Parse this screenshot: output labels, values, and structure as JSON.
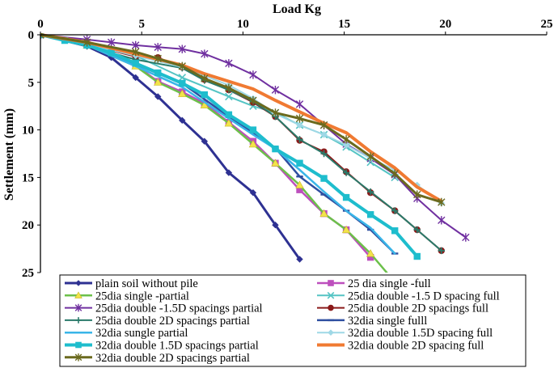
{
  "chart_data": {
    "type": "line",
    "title": "",
    "xlabel": "Load Kg",
    "ylabel": "Settlement (mm)",
    "xlim": [
      0,
      25
    ],
    "ylim": [
      0,
      25
    ],
    "y_inverted": true,
    "x_axis_position": "top",
    "grid": false,
    "legend_placement": "bottom",
    "x_ticks": [
      "0",
      "5",
      "10",
      "15",
      "20",
      "25"
    ],
    "y_ticks": [
      "0",
      "5",
      "10",
      "15",
      "20",
      "25"
    ],
    "series": [
      {
        "name": "plain soil without pile",
        "color": "#2e3192",
        "marker": "diamond",
        "width": 3,
        "x": [
          0,
          2.3,
          3.5,
          4.7,
          5.8,
          7.0,
          8.1,
          9.3,
          10.5,
          11.6,
          12.8
        ],
        "y": [
          0,
          1.2,
          2.4,
          4.5,
          6.5,
          9.0,
          11.2,
          14.5,
          16.6,
          20.0,
          23.6
        ]
      },
      {
        "name": "25 dia single -full",
        "color": "#bd4fbd",
        "marker": "square",
        "width": 2.5,
        "x": [
          0,
          2.3,
          4.7,
          5.8,
          7.0,
          8.1,
          9.3,
          10.5,
          11.6,
          12.8,
          14.0,
          15.1,
          16.3
        ],
        "y": [
          0,
          1.0,
          3.2,
          4.9,
          6.0,
          7.2,
          9.2,
          11.2,
          13.5,
          16.3,
          18.8,
          20.5,
          23.4
        ]
      },
      {
        "name": "25dia single -partial",
        "color": "#6cc04a",
        "marker": "triangle",
        "width": 2.5,
        "x": [
          0,
          2.3,
          4.7,
          5.8,
          7.0,
          8.1,
          9.3,
          10.5,
          11.6,
          12.8,
          14.0,
          15.1,
          16.3,
          17.5
        ],
        "y": [
          0,
          1.1,
          3.3,
          5.0,
          6.2,
          7.4,
          9.3,
          11.5,
          13.5,
          15.8,
          18.8,
          20.5,
          23.0,
          26.0
        ]
      },
      {
        "name": "25dia double -1.5 D spacing full",
        "color": "#55c4c4",
        "marker": "x",
        "width": 2,
        "x": [
          0,
          2.3,
          4.7,
          7.0,
          9.3,
          10.5,
          11.6,
          12.8,
          14.0,
          15.1,
          16.3,
          17.5
        ],
        "y": [
          0,
          0.8,
          2.2,
          4.5,
          6.5,
          7.5,
          8.2,
          9.5,
          10.5,
          11.8,
          13.4,
          15.0
        ]
      },
      {
        "name": "25dia double -1.5D spacings partial",
        "color": "#7030a0",
        "marker": "star",
        "width": 2,
        "x": [
          0,
          2.3,
          3.5,
          4.7,
          5.8,
          7.0,
          8.1,
          9.3,
          10.5,
          11.6,
          12.8,
          14.0,
          15.1,
          16.3,
          17.5,
          18.6,
          19.8,
          21.0
        ],
        "y": [
          0,
          0.5,
          0.8,
          1.1,
          1.3,
          1.5,
          2.0,
          3.0,
          4.2,
          5.8,
          7.3,
          9.5,
          11.5,
          13.0,
          14.7,
          17.2,
          19.5,
          21.3
        ]
      },
      {
        "name": "25dia double 2D spacings full",
        "color": "#8b1a1a",
        "marker": "circle",
        "width": 2,
        "x": [
          0,
          2.3,
          4.7,
          5.8,
          7.0,
          8.1,
          9.3,
          10.5,
          11.6,
          12.8,
          14.0,
          15.1,
          16.3,
          17.5,
          18.6,
          19.8
        ],
        "y": [
          0,
          1.0,
          2.3,
          2.4,
          3.4,
          4.7,
          5.8,
          7.1,
          8.6,
          11.1,
          12.3,
          14.4,
          16.6,
          18.5,
          20.5,
          22.7
        ]
      },
      {
        "name": "25dia double 2D spacings partial",
        "color": "#2a7a6a",
        "marker": "plus",
        "width": 2,
        "x": [
          0,
          2.3,
          4.7,
          7.0,
          8.1,
          9.3,
          10.5,
          11.6,
          12.8,
          14.0,
          15.1,
          16.3,
          17.5,
          18.6,
          19.8
        ],
        "y": [
          0,
          1.2,
          2.6,
          3.5,
          4.8,
          5.8,
          7.0,
          8.6,
          11.0,
          12.5,
          14.5,
          16.5,
          18.5,
          20.5,
          22.7
        ]
      },
      {
        "name": "32dia single fulll",
        "color": "#2f4fa0",
        "marker": "dash",
        "width": 2.5,
        "x": [
          0,
          2.3,
          4.7,
          7.0,
          9.3,
          10.5,
          11.6,
          12.8,
          14.0,
          15.1,
          16.3,
          17.5
        ],
        "y": [
          0,
          1.0,
          3.1,
          5.1,
          8.6,
          10.3,
          11.9,
          14.9,
          16.8,
          18.5,
          20.5,
          23.0
        ]
      },
      {
        "name": "32dia sungle partial",
        "color": "#39b5e8",
        "marker": "none",
        "width": 2.5,
        "x": [
          0,
          2.3,
          4.7,
          7.0,
          9.3,
          10.5,
          11.6,
          12.8,
          14.0,
          15.1,
          16.3,
          17.5
        ],
        "y": [
          0,
          1.1,
          3.3,
          5.5,
          8.8,
          10.5,
          12.0,
          14.2,
          16.5,
          18.5,
          20.3,
          23.0
        ]
      },
      {
        "name": "32dia double 1.5D spacing full",
        "color": "#9fd8e6",
        "marker": "diamond",
        "width": 2,
        "x": [
          0,
          2.3,
          4.7,
          7.0,
          9.3,
          10.5,
          11.6,
          12.8,
          14.0,
          15.1,
          16.3,
          17.5,
          18.6,
          19.8
        ],
        "y": [
          0,
          1.0,
          2.2,
          3.4,
          5.3,
          6.7,
          8.3,
          9.5,
          10.5,
          11.6,
          13.0,
          14.2,
          15.8,
          17.7
        ]
      },
      {
        "name": "32dia double 1.5D spacings partial",
        "color": "#1ebdcd",
        "marker": "square",
        "width": 4,
        "x": [
          0,
          1.2,
          2.3,
          3.5,
          4.7,
          5.8,
          7.0,
          8.1,
          9.3,
          10.5,
          11.6,
          12.8,
          14.0,
          15.1,
          16.3,
          17.5,
          18.6
        ],
        "y": [
          0,
          0.6,
          1.1,
          1.9,
          3.0,
          4.0,
          5.1,
          6.3,
          8.4,
          10.0,
          12.0,
          13.5,
          15.1,
          17.1,
          18.9,
          20.6,
          23.3
        ]
      },
      {
        "name": "32dia double 2D spacing full",
        "color": "#f07a32",
        "marker": "none",
        "width": 4,
        "x": [
          0,
          2.3,
          4.7,
          7.0,
          8.1,
          9.3,
          10.5,
          11.6,
          12.8,
          14.0,
          15.1,
          16.3,
          17.5,
          18.6,
          19.8
        ],
        "y": [
          0,
          0.8,
          2.0,
          3.2,
          4.1,
          4.9,
          5.7,
          6.9,
          8.1,
          9.3,
          10.3,
          12.3,
          14.0,
          16.0,
          17.5
        ]
      },
      {
        "name": "32dia double 2D spacings partial",
        "color": "#6b6a1e",
        "marker": "star",
        "width": 3,
        "x": [
          0,
          2.3,
          4.7,
          5.8,
          7.0,
          8.1,
          9.3,
          10.5,
          11.6,
          12.8,
          14.0,
          15.1,
          16.3,
          17.5,
          18.6,
          19.8
        ],
        "y": [
          0,
          0.8,
          1.8,
          2.5,
          3.3,
          4.6,
          5.6,
          6.9,
          8.2,
          8.8,
          9.5,
          11.0,
          12.8,
          14.6,
          16.8,
          17.6
        ]
      }
    ]
  }
}
